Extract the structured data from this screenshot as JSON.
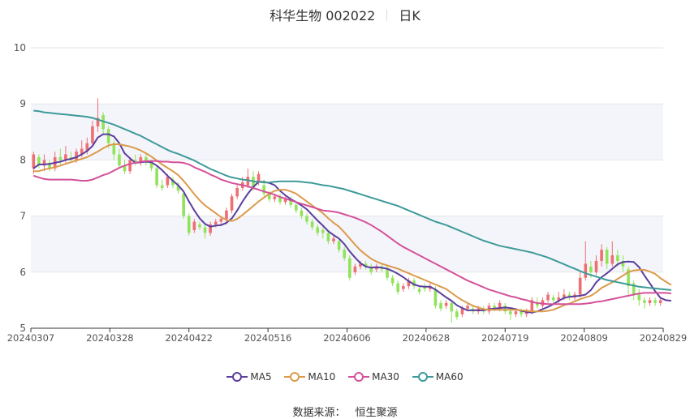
{
  "title": {
    "name": "科华生物 002022",
    "period": "日K"
  },
  "source": {
    "label": "数据来源：",
    "value": "恒生聚源"
  },
  "chart_data": {
    "type": "candlestick",
    "title": "科华生物 002022",
    "xlabel": "",
    "ylabel": "",
    "ylim": [
      5,
      10
    ],
    "yticks": [
      5,
      6,
      7,
      8,
      9,
      10
    ],
    "x_tick_labels": [
      "20240307",
      "20240328",
      "20240422",
      "20240516",
      "20240606",
      "20240628",
      "20240719",
      "20240809",
      "20240829"
    ],
    "grid": "horizontal",
    "legend_position": "bottom",
    "colors": {
      "up": "#ee6e73",
      "down": "#91e35a"
    },
    "candles": [
      [
        7.85,
        8.1,
        7.75,
        8.15
      ],
      [
        8.05,
        7.9,
        7.85,
        8.1
      ],
      [
        7.9,
        8.0,
        7.8,
        8.1
      ],
      [
        7.95,
        7.85,
        7.8,
        8.0
      ],
      [
        7.85,
        8.05,
        7.8,
        8.15
      ],
      [
        8.05,
        8.0,
        7.9,
        8.2
      ],
      [
        8.0,
        8.1,
        7.95,
        8.25
      ],
      [
        8.05,
        8.0,
        7.95,
        8.15
      ],
      [
        8.0,
        8.15,
        7.95,
        8.2
      ],
      [
        8.1,
        8.2,
        8.05,
        8.35
      ],
      [
        8.15,
        8.3,
        8.1,
        8.4
      ],
      [
        8.3,
        8.6,
        8.25,
        8.7
      ],
      [
        8.6,
        8.75,
        8.5,
        9.1
      ],
      [
        8.8,
        8.55,
        8.45,
        8.85
      ],
      [
        8.55,
        8.3,
        8.2,
        8.6
      ],
      [
        8.3,
        8.1,
        8.0,
        8.35
      ],
      [
        8.1,
        7.9,
        7.85,
        8.2
      ],
      [
        7.9,
        7.8,
        7.75,
        8.0
      ],
      [
        7.8,
        8.0,
        7.75,
        8.05
      ],
      [
        8.0,
        7.95,
        7.9,
        8.1
      ],
      [
        7.95,
        8.05,
        7.9,
        8.1
      ],
      [
        8.05,
        7.95,
        7.9,
        8.1
      ],
      [
        7.95,
        7.85,
        7.8,
        8.0
      ],
      [
        7.85,
        7.55,
        7.5,
        7.9
      ],
      [
        7.55,
        7.5,
        7.45,
        7.65
      ],
      [
        7.55,
        7.7,
        7.5,
        7.75
      ],
      [
        7.65,
        7.55,
        7.5,
        7.7
      ],
      [
        7.55,
        7.45,
        7.4,
        7.6
      ],
      [
        7.4,
        7.0,
        6.95,
        7.45
      ],
      [
        7.0,
        6.7,
        6.65,
        7.05
      ],
      [
        6.75,
        6.9,
        6.7,
        6.95
      ],
      [
        6.85,
        6.8,
        6.75,
        6.9
      ],
      [
        6.8,
        6.7,
        6.6,
        6.85
      ],
      [
        6.7,
        6.85,
        6.65,
        6.9
      ],
      [
        6.85,
        6.9,
        6.8,
        6.95
      ],
      [
        6.9,
        6.95,
        6.85,
        7.0
      ],
      [
        6.95,
        7.1,
        6.85,
        7.15
      ],
      [
        7.1,
        7.35,
        7.05,
        7.4
      ],
      [
        7.35,
        7.5,
        7.3,
        7.55
      ],
      [
        7.5,
        7.6,
        7.45,
        7.7
      ],
      [
        7.55,
        7.7,
        7.5,
        7.85
      ],
      [
        7.7,
        7.5,
        7.45,
        7.8
      ],
      [
        7.6,
        7.75,
        7.55,
        7.8
      ],
      [
        7.55,
        7.4,
        7.35,
        7.65
      ],
      [
        7.4,
        7.3,
        7.25,
        7.45
      ],
      [
        7.3,
        7.35,
        7.25,
        7.4
      ],
      [
        7.35,
        7.25,
        7.2,
        7.4
      ],
      [
        7.25,
        7.3,
        7.2,
        7.35
      ],
      [
        7.3,
        7.2,
        7.15,
        7.35
      ],
      [
        7.2,
        7.1,
        7.05,
        7.25
      ],
      [
        7.1,
        7.0,
        6.95,
        7.15
      ],
      [
        7.0,
        6.9,
        6.85,
        7.05
      ],
      [
        6.9,
        6.8,
        6.75,
        6.95
      ],
      [
        6.8,
        6.7,
        6.65,
        6.85
      ],
      [
        6.75,
        6.7,
        6.6,
        6.8
      ],
      [
        6.7,
        6.55,
        6.5,
        6.75
      ],
      [
        6.55,
        6.6,
        6.5,
        6.65
      ],
      [
        6.55,
        6.4,
        6.35,
        6.6
      ],
      [
        6.4,
        6.25,
        6.2,
        6.45
      ],
      [
        6.25,
        5.9,
        5.85,
        6.3
      ],
      [
        6.0,
        6.1,
        5.95,
        6.15
      ],
      [
        6.1,
        6.15,
        6.05,
        6.2
      ],
      [
        6.15,
        6.1,
        6.05,
        6.2
      ],
      [
        6.1,
        6.0,
        5.95,
        6.15
      ],
      [
        6.05,
        6.1,
        6.0,
        6.15
      ],
      [
        6.1,
        6.05,
        6.0,
        6.15
      ],
      [
        6.05,
        5.9,
        5.85,
        6.1
      ],
      [
        5.9,
        5.8,
        5.75,
        5.95
      ],
      [
        5.8,
        5.65,
        5.6,
        5.85
      ],
      [
        5.7,
        5.75,
        5.65,
        5.8
      ],
      [
        5.75,
        5.85,
        5.7,
        5.9
      ],
      [
        5.85,
        5.75,
        5.7,
        5.9
      ],
      [
        5.7,
        5.65,
        5.6,
        5.75
      ],
      [
        5.75,
        5.7,
        5.65,
        5.8
      ],
      [
        5.7,
        5.75,
        5.65,
        5.8
      ],
      [
        5.7,
        5.4,
        5.35,
        5.75
      ],
      [
        5.45,
        5.35,
        5.3,
        5.5
      ],
      [
        5.4,
        5.45,
        5.35,
        5.5
      ],
      [
        5.45,
        5.3,
        5.1,
        5.5
      ],
      [
        5.3,
        5.2,
        5.15,
        5.35
      ],
      [
        5.25,
        5.35,
        5.2,
        5.4
      ],
      [
        5.35,
        5.4,
        5.3,
        5.45
      ],
      [
        5.35,
        5.3,
        5.25,
        5.4
      ],
      [
        5.3,
        5.35,
        5.25,
        5.4
      ],
      [
        5.35,
        5.3,
        5.25,
        5.4
      ],
      [
        5.3,
        5.4,
        5.25,
        5.45
      ],
      [
        5.4,
        5.35,
        5.3,
        5.45
      ],
      [
        5.35,
        5.45,
        5.3,
        5.5
      ],
      [
        5.4,
        5.3,
        5.25,
        5.45
      ],
      [
        5.3,
        5.25,
        5.15,
        5.35
      ],
      [
        5.25,
        5.3,
        5.2,
        5.35
      ],
      [
        5.3,
        5.25,
        5.2,
        5.35
      ],
      [
        5.25,
        5.3,
        5.2,
        5.35
      ],
      [
        5.3,
        5.5,
        5.25,
        5.55
      ],
      [
        5.45,
        5.4,
        5.35,
        5.55
      ],
      [
        5.4,
        5.5,
        5.35,
        5.55
      ],
      [
        5.5,
        5.6,
        5.45,
        5.65
      ],
      [
        5.55,
        5.5,
        5.45,
        5.6
      ],
      [
        5.5,
        5.55,
        5.45,
        5.65
      ],
      [
        5.55,
        5.6,
        5.5,
        5.7
      ],
      [
        5.6,
        5.55,
        5.5,
        5.65
      ],
      [
        5.55,
        5.6,
        5.5,
        5.65
      ],
      [
        5.6,
        5.9,
        5.55,
        6.0
      ],
      [
        5.9,
        6.15,
        5.85,
        6.55
      ],
      [
        6.1,
        6.0,
        5.9,
        6.2
      ],
      [
        6.0,
        6.2,
        5.95,
        6.3
      ],
      [
        6.2,
        6.4,
        6.1,
        6.5
      ],
      [
        6.4,
        6.15,
        6.05,
        6.45
      ],
      [
        6.15,
        6.3,
        6.1,
        6.55
      ],
      [
        6.3,
        6.2,
        6.1,
        6.4
      ],
      [
        6.2,
        6.1,
        6.0,
        6.3
      ],
      [
        6.05,
        5.75,
        5.6,
        6.1
      ],
      [
        5.8,
        5.6,
        5.5,
        5.85
      ],
      [
        5.6,
        5.5,
        5.4,
        5.7
      ],
      [
        5.5,
        5.45,
        5.35,
        5.55
      ],
      [
        5.45,
        5.5,
        5.4,
        5.55
      ],
      [
        5.5,
        5.45,
        5.4,
        5.55
      ],
      [
        5.45,
        5.5,
        5.4,
        5.55
      ]
    ],
    "series": [
      {
        "name": "MA5",
        "color": "#5b3e9e",
        "values": [
          7.85,
          7.92,
          7.92,
          7.93,
          7.95,
          7.97,
          8.0,
          8.02,
          8.05,
          8.1,
          8.16,
          8.25,
          8.4,
          8.46,
          8.46,
          8.42,
          8.3,
          8.12,
          8.03,
          7.95,
          7.96,
          7.97,
          7.96,
          7.9,
          7.82,
          7.72,
          7.63,
          7.55,
          7.44,
          7.26,
          7.1,
          6.96,
          6.86,
          6.81,
          6.83,
          6.84,
          6.88,
          6.96,
          7.1,
          7.26,
          7.4,
          7.52,
          7.61,
          7.61,
          7.59,
          7.55,
          7.45,
          7.37,
          7.3,
          7.25,
          7.19,
          7.12,
          7.02,
          6.92,
          6.83,
          6.73,
          6.66,
          6.6,
          6.5,
          6.37,
          6.26,
          6.16,
          6.1,
          6.08,
          6.09,
          6.08,
          6.06,
          6.02,
          5.97,
          5.91,
          5.84,
          5.78,
          5.75,
          5.74,
          5.74,
          5.69,
          5.62,
          5.55,
          5.49,
          5.41,
          5.36,
          5.32,
          5.32,
          5.32,
          5.32,
          5.34,
          5.35,
          5.36,
          5.37,
          5.36,
          5.34,
          5.31,
          5.29,
          5.28,
          5.3,
          5.34,
          5.38,
          5.43,
          5.49,
          5.54,
          5.56,
          5.57,
          5.58,
          5.6,
          5.68,
          5.82,
          5.91,
          5.98,
          6.06,
          6.14,
          6.18,
          6.19,
          6.18,
          6.09,
          5.94,
          5.8,
          5.66,
          5.54,
          5.5,
          5.49
        ]
      },
      {
        "name": "MA10",
        "color": "#dc9a4b",
        "values": [
          7.8,
          7.8,
          7.83,
          7.85,
          7.87,
          7.9,
          7.93,
          7.96,
          7.99,
          8.02,
          8.05,
          8.1,
          8.15,
          8.21,
          8.26,
          8.28,
          8.28,
          8.26,
          8.24,
          8.21,
          8.17,
          8.12,
          8.06,
          7.99,
          7.92,
          7.86,
          7.8,
          7.73,
          7.63,
          7.51,
          7.39,
          7.28,
          7.19,
          7.12,
          7.05,
          6.98,
          6.93,
          6.91,
          6.95,
          7.02,
          7.1,
          7.18,
          7.26,
          7.33,
          7.4,
          7.45,
          7.47,
          7.47,
          7.44,
          7.4,
          7.33,
          7.26,
          7.19,
          7.12,
          7.05,
          6.96,
          6.88,
          6.81,
          6.71,
          6.6,
          6.49,
          6.39,
          6.31,
          6.24,
          6.19,
          6.15,
          6.12,
          6.09,
          6.06,
          6.02,
          5.98,
          5.94,
          5.9,
          5.86,
          5.82,
          5.78,
          5.74,
          5.7,
          5.63,
          5.56,
          5.5,
          5.45,
          5.4,
          5.37,
          5.34,
          5.33,
          5.33,
          5.33,
          5.33,
          5.33,
          5.33,
          5.32,
          5.31,
          5.3,
          5.3,
          5.3,
          5.31,
          5.33,
          5.37,
          5.41,
          5.44,
          5.48,
          5.52,
          5.55,
          5.58,
          5.64,
          5.72,
          5.77,
          5.82,
          5.88,
          5.94,
          6.0,
          6.03,
          6.04,
          6.04,
          6.01,
          5.97,
          5.89,
          5.83,
          5.77
        ]
      },
      {
        "name": "MA30",
        "color": "#d4519a",
        "values": [
          7.72,
          7.69,
          7.66,
          7.65,
          7.65,
          7.65,
          7.65,
          7.65,
          7.64,
          7.63,
          7.63,
          7.65,
          7.69,
          7.73,
          7.76,
          7.81,
          7.86,
          7.9,
          7.93,
          7.95,
          7.97,
          7.98,
          7.98,
          7.98,
          7.97,
          7.97,
          7.96,
          7.96,
          7.95,
          7.92,
          7.87,
          7.83,
          7.79,
          7.74,
          7.7,
          7.65,
          7.62,
          7.59,
          7.57,
          7.55,
          7.53,
          7.5,
          7.47,
          7.44,
          7.41,
          7.38,
          7.34,
          7.31,
          7.28,
          7.25,
          7.22,
          7.19,
          7.16,
          7.13,
          7.1,
          7.09,
          7.08,
          7.06,
          7.03,
          7.0,
          6.97,
          6.93,
          6.89,
          6.84,
          6.78,
          6.72,
          6.65,
          6.58,
          6.51,
          6.45,
          6.4,
          6.35,
          6.3,
          6.25,
          6.2,
          6.15,
          6.1,
          6.05,
          6.0,
          5.95,
          5.9,
          5.85,
          5.81,
          5.77,
          5.73,
          5.69,
          5.66,
          5.63,
          5.6,
          5.57,
          5.55,
          5.52,
          5.5,
          5.47,
          5.45,
          5.44,
          5.43,
          5.43,
          5.43,
          5.43,
          5.43,
          5.43,
          5.43,
          5.44,
          5.45,
          5.47,
          5.48,
          5.5,
          5.52,
          5.54,
          5.56,
          5.58,
          5.6,
          5.62,
          5.63,
          5.63,
          5.63,
          5.63,
          5.63,
          5.62
        ]
      },
      {
        "name": "MA60",
        "color": "#3e9a9a",
        "values": [
          8.88,
          8.87,
          8.85,
          8.84,
          8.83,
          8.82,
          8.81,
          8.8,
          8.79,
          8.78,
          8.77,
          8.75,
          8.72,
          8.69,
          8.66,
          8.63,
          8.59,
          8.55,
          8.51,
          8.47,
          8.43,
          8.38,
          8.33,
          8.28,
          8.23,
          8.18,
          8.14,
          8.11,
          8.07,
          8.03,
          7.99,
          7.94,
          7.89,
          7.84,
          7.8,
          7.76,
          7.72,
          7.69,
          7.67,
          7.65,
          7.64,
          7.62,
          7.61,
          7.6,
          7.6,
          7.61,
          7.62,
          7.62,
          7.62,
          7.62,
          7.61,
          7.6,
          7.59,
          7.57,
          7.55,
          7.54,
          7.52,
          7.5,
          7.48,
          7.45,
          7.42,
          7.39,
          7.36,
          7.33,
          7.3,
          7.27,
          7.24,
          7.21,
          7.18,
          7.14,
          7.1,
          7.06,
          7.02,
          6.98,
          6.94,
          6.9,
          6.87,
          6.84,
          6.8,
          6.76,
          6.72,
          6.68,
          6.64,
          6.6,
          6.56,
          6.53,
          6.5,
          6.47,
          6.45,
          6.43,
          6.41,
          6.39,
          6.37,
          6.35,
          6.32,
          6.29,
          6.26,
          6.22,
          6.18,
          6.14,
          6.1,
          6.06,
          6.02,
          5.98,
          5.95,
          5.92,
          5.89,
          5.86,
          5.84,
          5.82,
          5.8,
          5.78,
          5.76,
          5.74,
          5.73,
          5.72,
          5.71,
          5.7,
          5.69,
          5.68
        ]
      }
    ]
  }
}
